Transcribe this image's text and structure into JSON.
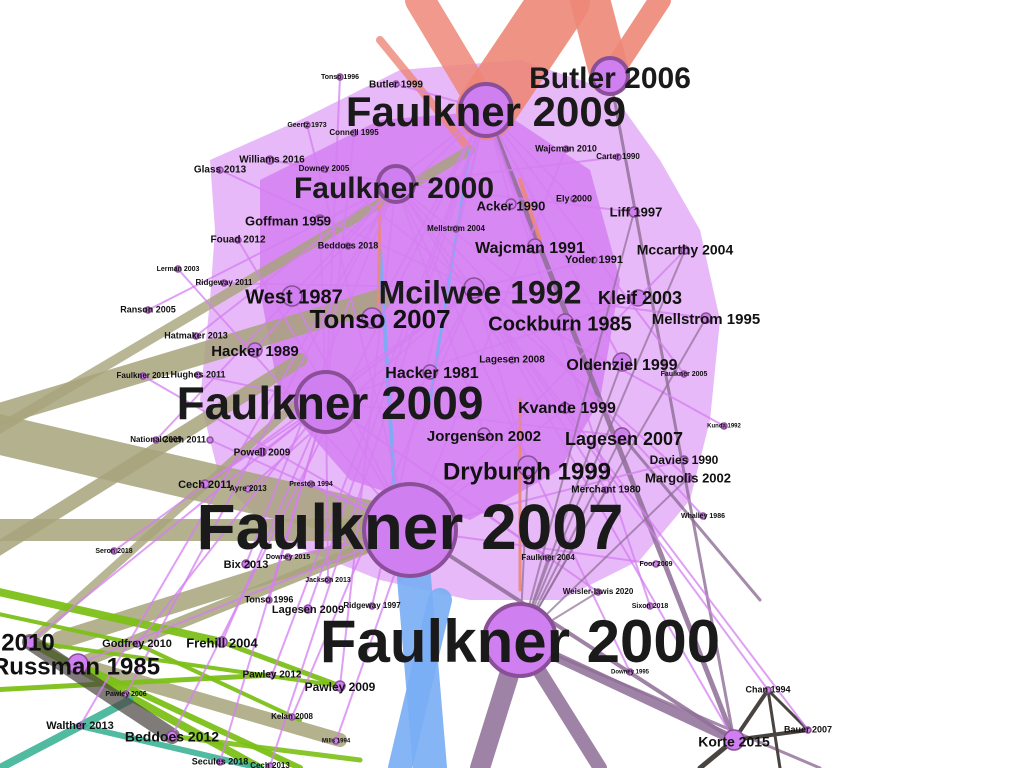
{
  "diagram": {
    "type": "citation-network",
    "colors": {
      "background": "#ffffff",
      "node_fill": "#cf7fef",
      "node_stroke": "#8a4f98",
      "cluster_violet": "#d57ff2",
      "cluster_olive": "#a8a47c",
      "cluster_green": "#7dc018",
      "cluster_blue": "#79aef5",
      "cluster_salmon": "#ee8878",
      "cluster_purple_gray": "#8f6e97",
      "cluster_dark": "#4a4440",
      "cluster_teal": "#3fb497",
      "label_text": "#111111"
    },
    "nodes": [
      {
        "id": "n1",
        "label": "Faulkner 2007"
      },
      {
        "id": "n2",
        "label": "Faulkner 2000"
      },
      {
        "id": "n3",
        "label": "Faulkner 2009"
      },
      {
        "id": "n4",
        "label": "Faulkner 2009"
      },
      {
        "id": "n5",
        "label": "Butler 2006"
      },
      {
        "id": "n6",
        "label": "Faulkner 2000"
      },
      {
        "id": "n7",
        "label": "Mcilwee 1992"
      },
      {
        "id": "n8",
        "label": "Tonso 2007"
      },
      {
        "id": "n9",
        "label": "Cockburn 1985"
      },
      {
        "id": "n10",
        "label": "Dryburgh 1999"
      },
      {
        "id": "n11",
        "label": "West 1987"
      },
      {
        "id": "n12",
        "label": "Kleif 2003"
      },
      {
        "id": "n13",
        "label": "Wajcman 1991"
      },
      {
        "id": "n14",
        "label": "Hacker 1989"
      },
      {
        "id": "n15",
        "label": "Hacker 1981"
      },
      {
        "id": "n16",
        "label": "Kvande 1999"
      },
      {
        "id": "n17",
        "label": "Lagesen 2007"
      },
      {
        "id": "n18",
        "label": "Oldenziel 1999"
      },
      {
        "id": "n19",
        "label": "Jorgenson 2002"
      },
      {
        "id": "n20",
        "label": "Mellstrom 1995"
      },
      {
        "id": "n21",
        "label": "Mccarthy 2004"
      },
      {
        "id": "n22",
        "label": "Goffman 1959"
      },
      {
        "id": "n23",
        "label": "Acker 1990"
      },
      {
        "id": "n24",
        "label": "Liff 1997"
      },
      {
        "id": "n25",
        "label": "Margolis 2002"
      },
      {
        "id": "n26",
        "label": "Davies 1990"
      },
      {
        "id": "n27",
        "label": "Frehill 2004"
      },
      {
        "id": "n28",
        "label": "Beddoes 2012"
      },
      {
        "id": "n29",
        "label": "Pawley 2009"
      },
      {
        "id": "n30",
        "label": "Korte 2015"
      },
      {
        "id": "n31",
        "label": "Russman 1985"
      },
      {
        "id": "n32",
        "label": "2010"
      },
      {
        "id": "n33",
        "label": "Lagesen 2009"
      },
      {
        "id": "n34",
        "label": "Bix 2013"
      },
      {
        "id": "n35",
        "label": "Powell 2009"
      },
      {
        "id": "n36",
        "label": "Cech 2011"
      },
      {
        "id": "n37",
        "label": "Cech 2011"
      },
      {
        "id": "n38",
        "label": "Butler 1999"
      },
      {
        "id": "n39",
        "label": "Williams 2016"
      },
      {
        "id": "n40",
        "label": "Glass 2013"
      },
      {
        "id": "n41",
        "label": "Fouad 2012"
      },
      {
        "id": "n42",
        "label": "Godfrey 2010"
      },
      {
        "id": "n43",
        "label": "Pawley 2012"
      },
      {
        "id": "n44",
        "label": "Walther 2013"
      },
      {
        "id": "n45",
        "label": "Yoder 1991"
      },
      {
        "id": "n46",
        "label": "Wajcman 2010"
      },
      {
        "id": "n47",
        "label": "Connell 1995"
      },
      {
        "id": "n48",
        "label": "Beddoes 2018"
      },
      {
        "id": "n49",
        "label": "Lagesen 2008"
      },
      {
        "id": "n50",
        "label": "Merchant 1980"
      },
      {
        "id": "n51",
        "label": "Faulkner 2011"
      },
      {
        "id": "n52",
        "label": "Hughes 2011"
      },
      {
        "id": "n53",
        "label": "Hatmaker 2013"
      },
      {
        "id": "n54",
        "label": "Ranson 2005"
      },
      {
        "id": "n55",
        "label": "Ridgeway 2011"
      },
      {
        "id": "n56",
        "label": "Lerman 2003"
      },
      {
        "id": "n57",
        "label": "Tonso 1996"
      },
      {
        "id": "n58",
        "label": "Ely 2000"
      },
      {
        "id": "n59",
        "label": "Carter 1990"
      },
      {
        "id": "n60",
        "label": "Downey 2005"
      },
      {
        "id": "n61",
        "label": "Geertz 1973"
      },
      {
        "id": "n62",
        "label": "Tonso 1996"
      },
      {
        "id": "n63",
        "label": "Mellstrom 2004"
      },
      {
        "id": "n64",
        "label": "National 2009"
      },
      {
        "id": "n65",
        "label": "Ayre 2013"
      },
      {
        "id": "n66",
        "label": "Preston 1994"
      },
      {
        "id": "n67",
        "label": "Faulkner 2004"
      },
      {
        "id": "n68",
        "label": "Faulkner 2005"
      },
      {
        "id": "n69",
        "label": "Whalley 1986"
      },
      {
        "id": "n70",
        "label": "Kunda 1992"
      },
      {
        "id": "n71",
        "label": "Foor 2009"
      },
      {
        "id": "n72",
        "label": "Weisler-lawis 2020"
      },
      {
        "id": "n73",
        "label": "Sixon 2018"
      },
      {
        "id": "n74",
        "label": "Downey 1995"
      },
      {
        "id": "n75",
        "label": "Seron 2018"
      },
      {
        "id": "n76",
        "label": "Downey 2015"
      },
      {
        "id": "n77",
        "label": "Jackson 2013"
      },
      {
        "id": "n78",
        "label": "Ridgeway 1997"
      },
      {
        "id": "n79",
        "label": "Pawley 2006"
      },
      {
        "id": "n80",
        "label": "Kelan 2008"
      },
      {
        "id": "n81",
        "label": "Mills 1994"
      },
      {
        "id": "n82",
        "label": "Secules 2018"
      },
      {
        "id": "n83",
        "label": "Cech 2013"
      },
      {
        "id": "n84",
        "label": "Chan 1994"
      },
      {
        "id": "n85",
        "label": "Bauer 2007"
      }
    ]
  }
}
